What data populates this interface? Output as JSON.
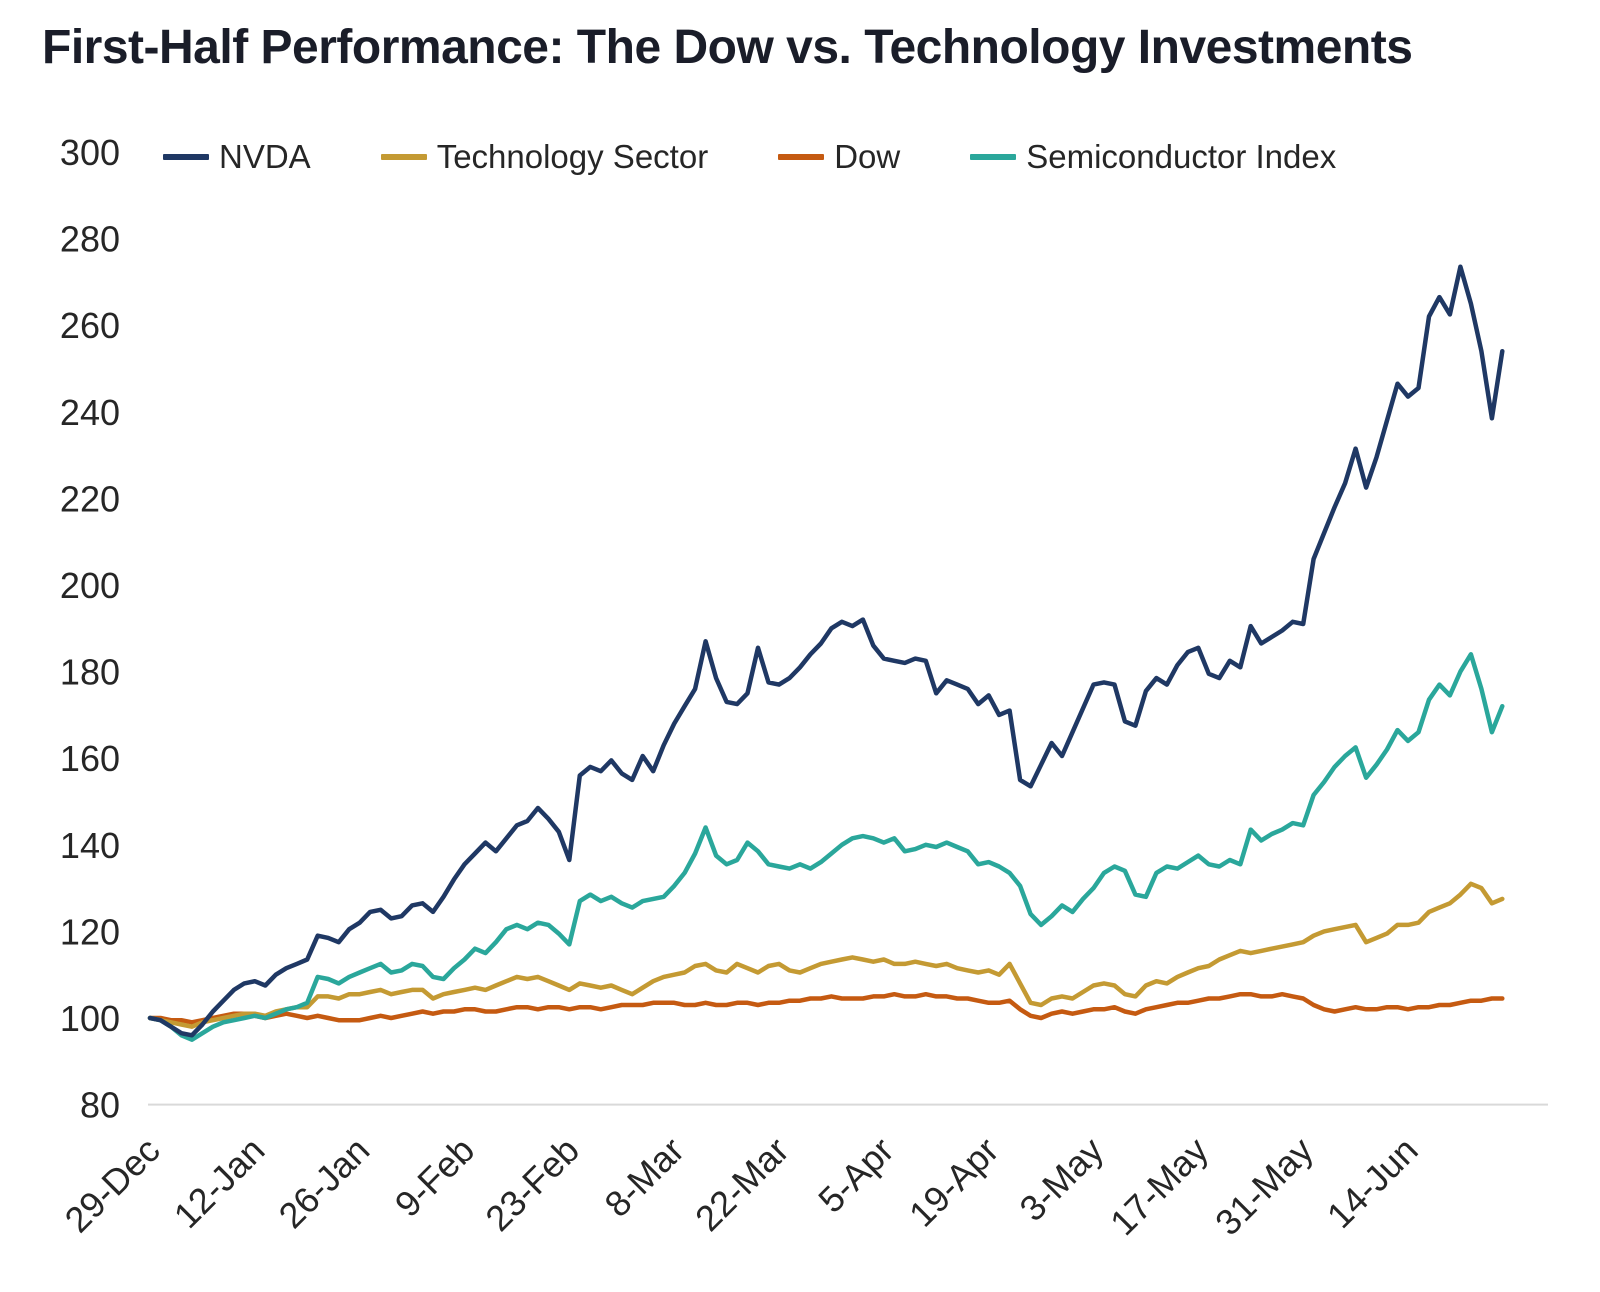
{
  "chart_data": {
    "type": "line",
    "title": "First-Half Performance: The Dow vs. Technology Investments",
    "xlabel": "",
    "ylabel": "",
    "ylim": [
      80,
      300
    ],
    "y_ticks": [
      80,
      100,
      120,
      140,
      160,
      180,
      200,
      220,
      240,
      260,
      280,
      300
    ],
    "x_labels": [
      "29-Dec",
      "12-Jan",
      "26-Jan",
      "9-Feb",
      "23-Feb",
      "8-Mar",
      "22-Mar",
      "5-Apr",
      "19-Apr",
      "3-May",
      "17-May",
      "31-May",
      "14-Jun"
    ],
    "x_label_days": [
      0,
      10,
      20,
      30,
      40,
      50,
      60,
      70,
      80,
      90,
      100,
      110,
      120
    ],
    "x_unit": "trading-day-index",
    "grid": "off",
    "legend_position": "top",
    "baseline_color": "#d9d9d9",
    "series": [
      {
        "name": "NVDA",
        "color": "#1F3864",
        "values": [
          100,
          99.5,
          98,
          96.5,
          96,
          98.5,
          101.5,
          104,
          106.5,
          108,
          108.5,
          107.5,
          110,
          111.5,
          112.5,
          113.5,
          119,
          118.5,
          117.5,
          120.5,
          122,
          124.5,
          125,
          123,
          123.5,
          126,
          126.5,
          124.5,
          128,
          132,
          135.5,
          138,
          140.5,
          138.5,
          141.5,
          144.5,
          145.5,
          148.5,
          146,
          143,
          136.5,
          156,
          158,
          157,
          159.5,
          156.5,
          155,
          160.5,
          157,
          163,
          168,
          172,
          176,
          187,
          178.5,
          173,
          172.5,
          175,
          185.5,
          177.5,
          177,
          178.5,
          181,
          184,
          186.5,
          190,
          191.5,
          190.5,
          192,
          186,
          183,
          182.5,
          182,
          183,
          182.5,
          175,
          178,
          177,
          176,
          172.5,
          174.5,
          170,
          171,
          155,
          153.5,
          158.5,
          163.5,
          160.5,
          166,
          171.5,
          177,
          177.5,
          177,
          168.5,
          167.5,
          175.5,
          178.5,
          177,
          181.5,
          184.5,
          185.5,
          179.5,
          178.5,
          182.5,
          181,
          190.5,
          186.5,
          188,
          189.5,
          191.5,
          191,
          206,
          212,
          218,
          223.5,
          231.5,
          222.5,
          229.5,
          238,
          246.5,
          243.5,
          245.5,
          262,
          266.5,
          262.5,
          273.5,
          265,
          254,
          238.5,
          254
        ]
      },
      {
        "name": "Technology Sector",
        "color": "#C49A33",
        "values": [
          100,
          99.5,
          99,
          98.5,
          98,
          99,
          99.5,
          100,
          100.5,
          101,
          101,
          100.5,
          101.5,
          102,
          102.5,
          102.5,
          105,
          105,
          104.5,
          105.5,
          105.5,
          106,
          106.5,
          105.5,
          106,
          106.5,
          106.5,
          104.5,
          105.5,
          106,
          106.5,
          107,
          106.5,
          107.5,
          108.5,
          109.5,
          109,
          109.5,
          108.5,
          107.5,
          106.5,
          108,
          107.5,
          107,
          107.5,
          106.5,
          105.5,
          107,
          108.5,
          109.5,
          110,
          110.5,
          112,
          112.5,
          111,
          110.5,
          112.5,
          111.5,
          110.5,
          112,
          112.5,
          111,
          110.5,
          111.5,
          112.5,
          113,
          113.5,
          114,
          113.5,
          113,
          113.5,
          112.5,
          112.5,
          113,
          112.5,
          112,
          112.5,
          111.5,
          111,
          110.5,
          111,
          110,
          112.5,
          108,
          103.5,
          103,
          104.5,
          105,
          104.5,
          106,
          107.5,
          108,
          107.5,
          105.5,
          105,
          107.5,
          108.5,
          108,
          109.5,
          110.5,
          111.5,
          112,
          113.5,
          114.5,
          115.5,
          115,
          115.5,
          116,
          116.5,
          117,
          117.5,
          119,
          120,
          120.5,
          121,
          121.5,
          117.5,
          118.5,
          119.5,
          121.5,
          121.5,
          122,
          124.5,
          125.5,
          126.5,
          128.5,
          131,
          130,
          126.5,
          127.5
        ]
      },
      {
        "name": "Dow",
        "color": "#C55A11",
        "values": [
          100,
          100,
          99.5,
          99.5,
          99,
          99.5,
          100,
          100.5,
          101,
          101,
          100.5,
          100,
          100.5,
          101,
          100.5,
          100,
          100.5,
          100,
          99.5,
          99.5,
          99.5,
          100,
          100.5,
          100,
          100.5,
          101,
          101.5,
          101,
          101.5,
          101.5,
          102,
          102,
          101.5,
          101.5,
          102,
          102.5,
          102.5,
          102,
          102.5,
          102.5,
          102,
          102.5,
          102.5,
          102,
          102.5,
          103,
          103,
          103,
          103.5,
          103.5,
          103.5,
          103,
          103,
          103.5,
          103,
          103,
          103.5,
          103.5,
          103,
          103.5,
          103.5,
          104,
          104,
          104.5,
          104.5,
          105,
          104.5,
          104.5,
          104.5,
          105,
          105,
          105.5,
          105,
          105,
          105.5,
          105,
          105,
          104.5,
          104.5,
          104,
          103.5,
          103.5,
          104,
          102,
          100.5,
          100,
          101,
          101.5,
          101,
          101.5,
          102,
          102,
          102.5,
          101.5,
          101,
          102,
          102.5,
          103,
          103.5,
          103.5,
          104,
          104.5,
          104.5,
          105,
          105.5,
          105.5,
          105,
          105,
          105.5,
          105,
          104.5,
          103,
          102,
          101.5,
          102,
          102.5,
          102,
          102,
          102.5,
          102.5,
          102,
          102.5,
          102.5,
          103,
          103,
          103.5,
          104,
          104,
          104.5,
          104.5
        ]
      },
      {
        "name": "Semiconductor Index",
        "color": "#2AA79B",
        "values": [
          100,
          99.5,
          98,
          96,
          95,
          96.5,
          98,
          99,
          99.5,
          100,
          100.5,
          100,
          101,
          102,
          102.5,
          103.5,
          109.5,
          109,
          108,
          109.5,
          110.5,
          111.5,
          112.5,
          110.5,
          111,
          112.5,
          112,
          109.5,
          109,
          111.5,
          113.5,
          116,
          115,
          117.5,
          120.5,
          121.5,
          120.5,
          122,
          121.5,
          119.5,
          117,
          127,
          128.5,
          127,
          128,
          126.5,
          125.5,
          127,
          127.5,
          128,
          130.5,
          133.5,
          138,
          144,
          137.5,
          135.5,
          136.5,
          140.5,
          138.5,
          135.5,
          135,
          134.5,
          135.5,
          134.5,
          136,
          138,
          140,
          141.5,
          142,
          141.5,
          140.5,
          141.5,
          138.5,
          139,
          140,
          139.5,
          140.5,
          139.5,
          138.5,
          135.5,
          136,
          135,
          133.5,
          130.5,
          124,
          121.5,
          123.5,
          126,
          124.5,
          127.5,
          130,
          133.5,
          135,
          134,
          128.5,
          128,
          133.5,
          135,
          134.5,
          136,
          137.5,
          135.5,
          135,
          136.5,
          135.5,
          143.5,
          141,
          142.5,
          143.5,
          145,
          144.5,
          151.5,
          154.5,
          158,
          160.5,
          162.5,
          155.5,
          158.5,
          162,
          166.5,
          164,
          166,
          173.5,
          177,
          174.5,
          180,
          184,
          176,
          166,
          172
        ]
      }
    ]
  }
}
